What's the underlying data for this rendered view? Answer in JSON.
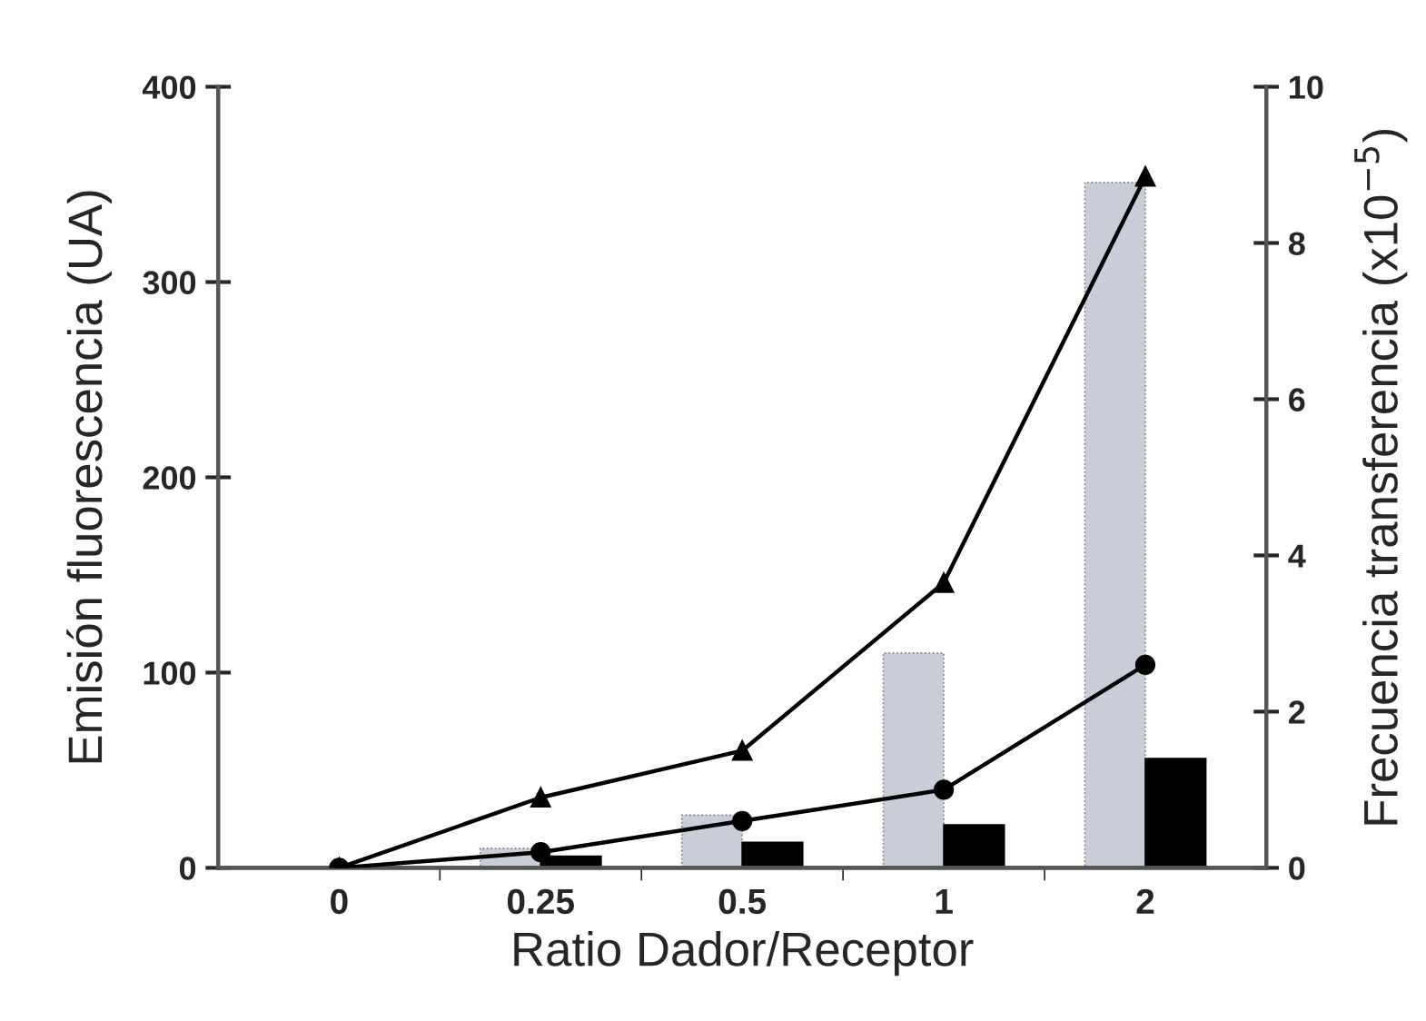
{
  "chart_data": {
    "type": "bar",
    "xlabel": "Ratio Dador/Receptor",
    "ylabel": "Emisión fluorescencia (UA)",
    "y2label": "Frecuencia transferencia (x10$^{−5}$)",
    "categories": [
      "0",
      "0.25",
      "0.5",
      "1",
      "2"
    ],
    "series": [
      {
        "color": "#c9cdd8",
        "values": [
          0,
          10,
          27,
          110,
          351
        ]
      },
      {
        "color": "#000000",
        "values": [
          0,
          6,
          13,
          22,
          56
        ]
      },
      {
        "type": "line",
        "axis": "y2",
        "color": "#000000",
        "marker": "triangle",
        "values": [
          0,
          0.9,
          1.5,
          3.65,
          8.85
        ]
      },
      {
        "type": "line",
        "axis": "y2",
        "color": "#000000",
        "marker": "circle",
        "values": [
          0,
          0.2,
          0.6,
          1.0,
          2.6
        ]
      }
    ],
    "ylim": [
      0,
      400
    ],
    "yticks": [
      0,
      100,
      200,
      300,
      400
    ],
    "y2lim": [
      0,
      10
    ],
    "y2ticks": [
      0,
      2,
      4,
      6,
      8,
      10
    ],
    "grid": false,
    "legend": false
  }
}
